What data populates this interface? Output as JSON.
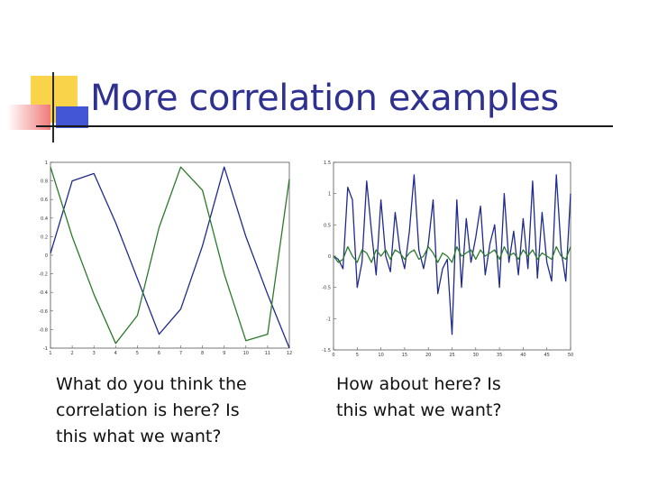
{
  "title": "More correlation examples",
  "captions": {
    "left": [
      "What do you think the",
      "correlation is here?  Is",
      "this what we want?"
    ],
    "right": [
      "How about here?  Is",
      "this what we want?"
    ]
  },
  "colors": {
    "title": "#2e3192",
    "series_blue": "#1f2a8c",
    "series_green": "#2a7a2a",
    "deco_yellow": "#f9d44a",
    "deco_red": "#f07a7a",
    "deco_blue": "#4356d6"
  },
  "chart_data": [
    {
      "type": "line",
      "xlim": [
        1,
        12
      ],
      "ylim": [
        -1,
        1
      ],
      "x_ticks": [
        "1",
        "2",
        "3",
        "4",
        "5",
        "6",
        "7",
        "8",
        "9",
        "10",
        "11",
        "12"
      ],
      "y_ticks": [
        "1",
        "0.8",
        "0.6",
        "0.4",
        "0.2",
        "0",
        "-0.2",
        "-0.4",
        "-0.6",
        "-0.8",
        "-1"
      ],
      "series": [
        {
          "color": "#1f2a8c",
          "x": [
            1,
            2,
            3,
            4,
            5,
            6,
            7,
            8,
            9,
            10,
            11,
            12
          ],
          "y": [
            0.02,
            0.8,
            0.88,
            0.35,
            -0.25,
            -0.85,
            -0.58,
            0.1,
            0.95,
            0.2,
            -0.42,
            -1.0
          ]
        },
        {
          "color": "#2a7a2a",
          "x": [
            1,
            2,
            3,
            4,
            5,
            6,
            7,
            8,
            9,
            10,
            11,
            12
          ],
          "y": [
            0.95,
            0.2,
            -0.42,
            -0.95,
            -0.65,
            0.3,
            0.95,
            0.7,
            -0.2,
            -0.92,
            -0.85,
            0.82
          ]
        }
      ]
    },
    {
      "type": "line",
      "xlim": [
        0,
        50
      ],
      "ylim": [
        -1.5,
        1.5
      ],
      "x_ticks": [
        "0",
        "5",
        "10",
        "15",
        "20",
        "25",
        "30",
        "35",
        "40",
        "45",
        "50"
      ],
      "y_ticks": [
        "1.5",
        "1",
        "0.5",
        "0",
        "-0.5",
        "-1",
        "-1.5"
      ],
      "series": [
        {
          "color": "#1f2a8c",
          "x": [
            0,
            1,
            2,
            3,
            4,
            5,
            6,
            7,
            8,
            9,
            10,
            11,
            12,
            13,
            14,
            15,
            16,
            17,
            18,
            19,
            20,
            21,
            22,
            23,
            24,
            25,
            26,
            27,
            28,
            29,
            30,
            31,
            32,
            33,
            34,
            35,
            36,
            37,
            38,
            39,
            40,
            41,
            42,
            43,
            44,
            45,
            46,
            47,
            48,
            49,
            50
          ],
          "y": [
            0.0,
            -0.05,
            -0.2,
            1.1,
            0.9,
            -0.5,
            -0.1,
            1.2,
            0.4,
            -0.3,
            0.9,
            0.0,
            -0.25,
            0.7,
            0.1,
            -0.2,
            0.4,
            1.3,
            0.1,
            -0.2,
            0.2,
            0.9,
            -0.6,
            -0.2,
            -0.05,
            -1.25,
            0.9,
            -0.5,
            0.6,
            -0.1,
            0.3,
            0.8,
            -0.3,
            0.2,
            0.5,
            -0.5,
            1.0,
            -0.1,
            0.4,
            -0.3,
            0.6,
            -0.2,
            1.2,
            -0.35,
            0.7,
            -0.1,
            -0.4,
            1.3,
            0.1,
            -0.4,
            1.0
          ]
        },
        {
          "color": "#2a7a2a",
          "x": [
            0,
            1,
            2,
            3,
            4,
            5,
            6,
            7,
            8,
            9,
            10,
            11,
            12,
            13,
            14,
            15,
            16,
            17,
            18,
            19,
            20,
            21,
            22,
            23,
            24,
            25,
            26,
            27,
            28,
            29,
            30,
            31,
            32,
            33,
            34,
            35,
            36,
            37,
            38,
            39,
            40,
            41,
            42,
            43,
            44,
            45,
            46,
            47,
            48,
            49,
            50
          ],
          "y": [
            0.0,
            -0.1,
            -0.05,
            0.15,
            0.0,
            -0.1,
            0.1,
            0.05,
            -0.1,
            0.1,
            0.0,
            0.1,
            -0.05,
            0.1,
            0.05,
            -0.05,
            0.05,
            0.1,
            -0.05,
            0.0,
            0.15,
            0.05,
            -0.1,
            0.05,
            0.0,
            -0.1,
            0.15,
            0.0,
            0.05,
            0.1,
            -0.05,
            0.1,
            0.0,
            0.05,
            0.1,
            -0.05,
            0.15,
            0.0,
            0.05,
            -0.05,
            0.1,
            0.0,
            0.1,
            -0.05,
            0.05,
            0.0,
            -0.05,
            0.15,
            0.0,
            -0.05,
            0.15
          ]
        }
      ]
    }
  ]
}
